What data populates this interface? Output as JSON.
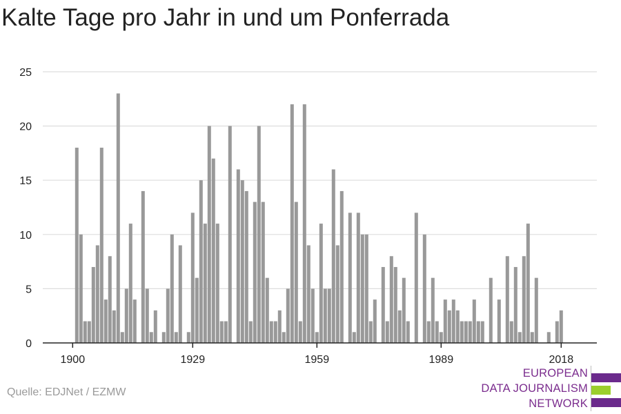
{
  "title": "Kalte Tage pro Jahr in und um Ponferrada",
  "source": "Quelle: EDJNet / EZMW",
  "logo": {
    "lines": [
      "EUROPEAN",
      "DATA JOURNALISM",
      "NETWORK"
    ],
    "colors": {
      "purple": "#6b2a8c",
      "green": "#9bcf2c",
      "text": "#7b2d8e"
    }
  },
  "colors": {
    "bar": "#999999",
    "grid": "#dddddd",
    "axis": "#222222",
    "text": "#222222"
  },
  "chart_data": {
    "type": "bar",
    "title": "Kalte Tage pro Jahr in und um Ponferrada",
    "xlabel": "",
    "ylabel": "",
    "x_start": 1900,
    "x_end": 2020,
    "x_ticks": [
      1900,
      1929,
      1959,
      1989,
      2018
    ],
    "y_ticks": [
      0,
      5,
      10,
      15,
      20,
      25
    ],
    "ylim": [
      0,
      25
    ],
    "grid": true,
    "values": [
      0,
      18,
      10,
      2,
      2,
      7,
      9,
      18,
      4,
      8,
      3,
      23,
      1,
      5,
      11,
      4,
      0,
      14,
      5,
      1,
      3,
      0,
      1,
      5,
      10,
      1,
      9,
      0,
      1,
      12,
      6,
      15,
      11,
      20,
      17,
      11,
      2,
      2,
      20,
      0,
      16,
      15,
      14,
      2,
      13,
      20,
      13,
      6,
      2,
      2,
      3,
      1,
      5,
      22,
      13,
      2,
      22,
      9,
      5,
      1,
      11,
      5,
      5,
      16,
      9,
      14,
      0,
      12,
      1,
      12,
      10,
      10,
      2,
      4,
      0,
      7,
      2,
      8,
      7,
      3,
      6,
      2,
      0,
      12,
      0,
      10,
      2,
      6,
      2,
      1,
      4,
      3,
      4,
      3,
      2,
      2,
      2,
      4,
      2,
      2,
      0,
      6,
      0,
      4,
      0,
      8,
      2,
      7,
      1,
      8,
      11,
      1,
      6,
      0,
      0,
      1,
      0,
      2,
      3,
      0,
      0
    ]
  }
}
